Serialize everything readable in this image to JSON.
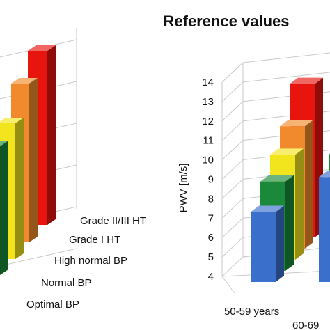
{
  "chart_data": {
    "type": "bar",
    "title": "Reference values",
    "ylabel": "PWV [m/s]",
    "ylim": [
      4,
      14
    ],
    "y_ticks": [
      "4",
      "5",
      "6",
      "7",
      "8",
      "9",
      "10",
      "11",
      "12",
      "13",
      "14"
    ],
    "depth_categories": [
      "Optimal BP",
      "Normal BP",
      "High normal BP",
      "Grade I HT",
      "Grade II/III HT"
    ],
    "age_groups": [
      "50-59 years",
      "60-69"
    ],
    "series_colors": {
      "Optimal BP": "#3a6fcc",
      "Normal BP": "#1a8a3a",
      "High normal BP": "#f2e51e",
      "Grade I HT": "#f08a2c",
      "Grade II/III HT": "#e8140e"
    },
    "series": [
      {
        "name": "Optimal BP",
        "values": [
          7.6,
          9.4
        ]
      },
      {
        "name": "Normal BP",
        "values": [
          8.6,
          10.0
        ]
      },
      {
        "name": "High normal BP",
        "values": [
          9.4,
          10.6
        ]
      },
      {
        "name": "Grade I HT",
        "values": [
          10.3,
          11.6
        ]
      },
      {
        "name": "Grade II/III HT",
        "values": [
          11.9,
          13.2
        ]
      }
    ],
    "grid": true
  }
}
